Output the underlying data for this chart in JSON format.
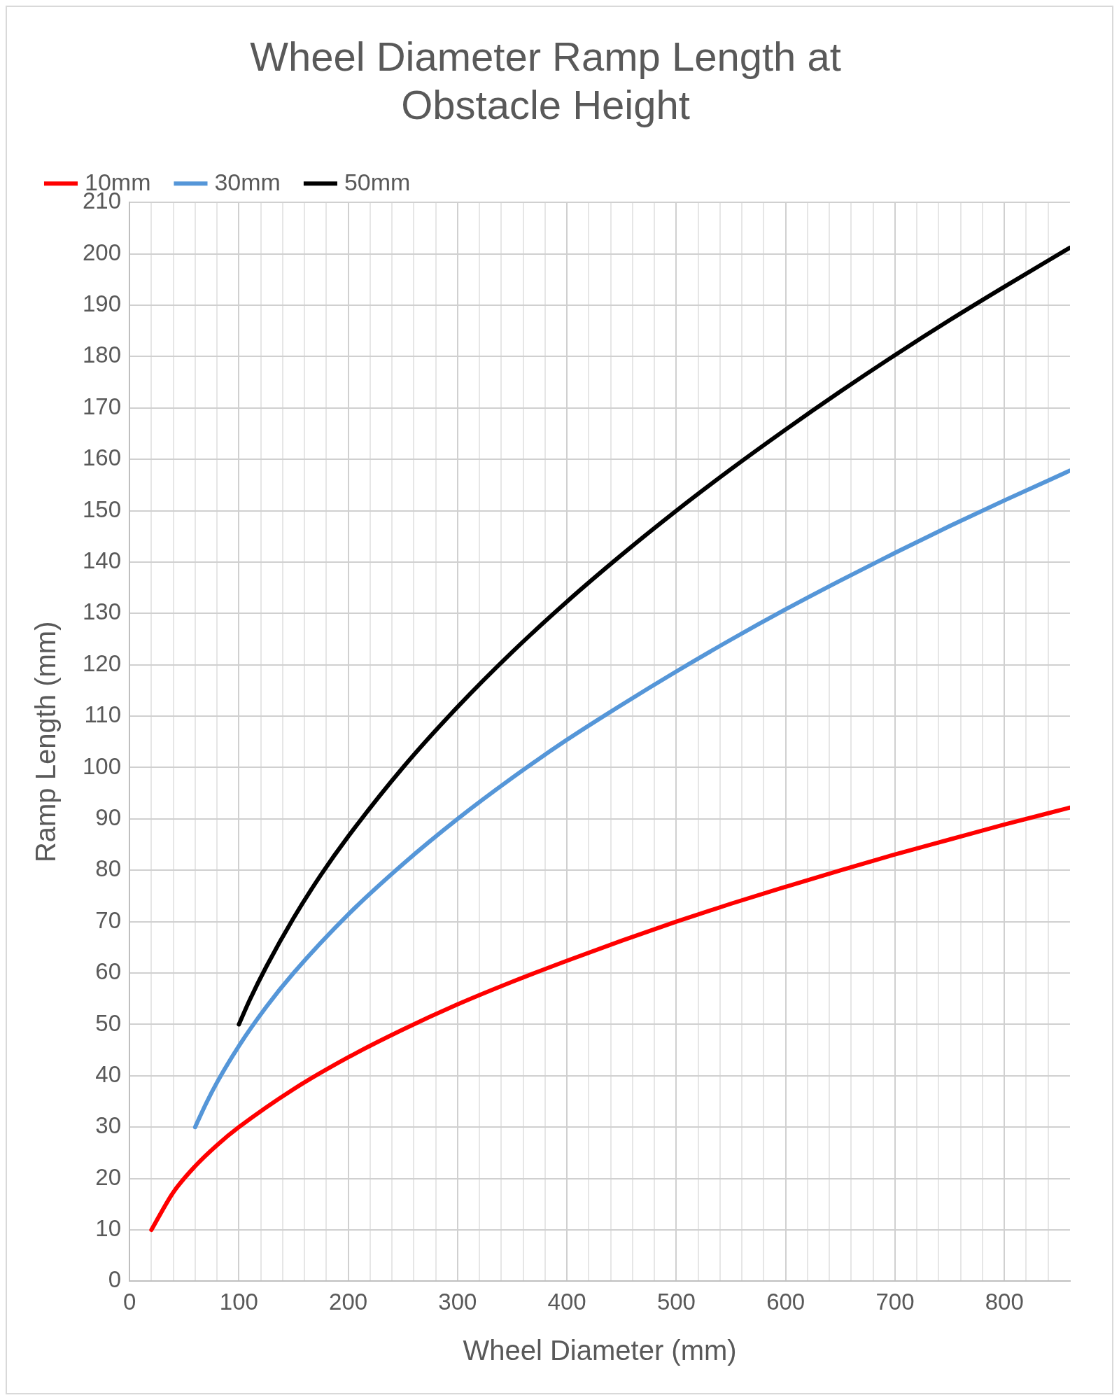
{
  "chart_data": {
    "type": "line",
    "title": [
      "Wheel Diameter Ramp Length at",
      "Obstacle Height"
    ],
    "xlabel": "Wheel Diameter (mm)",
    "ylabel": "Ramp Length (mm)",
    "xlim": [
      0,
      860
    ],
    "ylim": [
      0,
      210
    ],
    "xticks": [
      0,
      {
        "value": 20,
        "label": null
      },
      {
        "value": 40,
        "label": null
      },
      {
        "value": 60,
        "label": null
      },
      {
        "value": 80,
        "label": null
      },
      100,
      {
        "value": 120,
        "label": null
      },
      {
        "value": 140,
        "label": null
      },
      {
        "value": 160,
        "label": null
      },
      {
        "value": 180,
        "label": null
      },
      200,
      {
        "value": 220,
        "label": null
      },
      {
        "value": 240,
        "label": null
      },
      {
        "value": 260,
        "label": null
      },
      {
        "value": 280,
        "label": null
      },
      300,
      {
        "value": 320,
        "label": null
      },
      {
        "value": 340,
        "label": null
      },
      {
        "value": 360,
        "label": null
      },
      {
        "value": 380,
        "label": null
      },
      400,
      {
        "value": 420,
        "label": null
      },
      {
        "value": 440,
        "label": null
      },
      {
        "value": 460,
        "label": null
      },
      {
        "value": 480,
        "label": null
      },
      500,
      {
        "value": 520,
        "label": null
      },
      {
        "value": 540,
        "label": null
      },
      {
        "value": 560,
        "label": null
      },
      {
        "value": 580,
        "label": null
      },
      600,
      {
        "value": 620,
        "label": null
      },
      {
        "value": 640,
        "label": null
      },
      {
        "value": 660,
        "label": null
      },
      {
        "value": 680,
        "label": null
      },
      700,
      {
        "value": 720,
        "label": null
      },
      {
        "value": 740,
        "label": null
      },
      {
        "value": 760,
        "label": null
      },
      {
        "value": 780,
        "label": null
      },
      800,
      {
        "value": 820,
        "label": null
      },
      {
        "value": 840,
        "label": null
      }
    ],
    "yticks": [
      0,
      10,
      20,
      30,
      40,
      50,
      60,
      70,
      80,
      90,
      100,
      110,
      120,
      130,
      140,
      150,
      160,
      170,
      180,
      190,
      200,
      210
    ],
    "grid": true,
    "legend": "top left",
    "marker": "none",
    "line_style": "solid",
    "series": [
      {
        "name": "10mm",
        "color": "#ff0000",
        "x": [
          20,
          40,
          60,
          80,
          100,
          150,
          200,
          250,
          300,
          350,
          400,
          450,
          500,
          550,
          600,
          650,
          700,
          750,
          800,
          860
        ],
        "values": [
          10,
          17.3,
          22.4,
          26.5,
          30,
          37.4,
          43.6,
          49,
          53.9,
          58.3,
          62.4,
          66.3,
          70,
          73.5,
          76.8,
          80,
          83.1,
          86,
          88.9,
          92.2
        ]
      },
      {
        "name": "30mm",
        "color": "#5596d8",
        "x": [
          60,
          70,
          80,
          100,
          125,
          150,
          200,
          250,
          300,
          350,
          400,
          450,
          500,
          550,
          600,
          650,
          700,
          750,
          800,
          860
        ],
        "values": [
          30,
          34.6,
          38.7,
          45.8,
          53.4,
          60,
          71.4,
          81.2,
          90,
          98,
          105.4,
          112.2,
          118.7,
          124.9,
          130.8,
          136.4,
          141.8,
          147,
          152,
          157.8
        ]
      },
      {
        "name": "50mm",
        "color": "#000000",
        "x": [
          100,
          110,
          125,
          150,
          175,
          200,
          250,
          300,
          350,
          400,
          450,
          500,
          550,
          600,
          650,
          700,
          750,
          800,
          860
        ],
        "values": [
          50,
          54.8,
          61.2,
          70.7,
          79.1,
          86.6,
          100,
          111.8,
          122.5,
          132.3,
          141.4,
          150,
          158.1,
          165.8,
          173.2,
          180.3,
          187.1,
          193.6,
          201.2
        ]
      }
    ]
  }
}
